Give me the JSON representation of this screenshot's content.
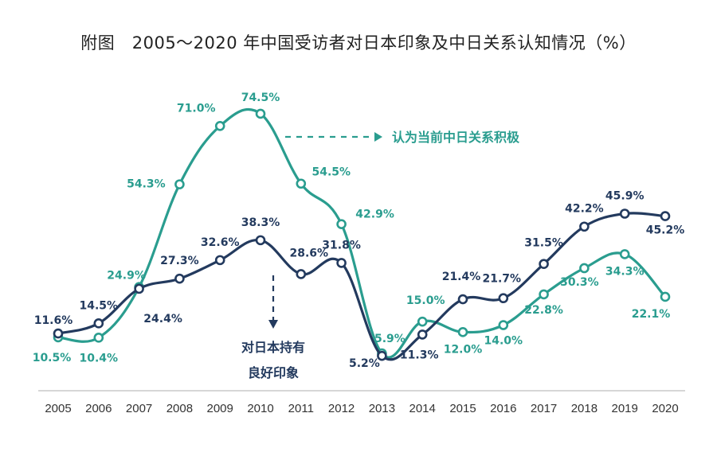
{
  "title": "附图　2005～2020 年中国受访者对日本印象及中日关系认知情况（%）",
  "colors": {
    "teal": "#2a9d8f",
    "navy": "#233a5e",
    "axis": "#c8c8c8"
  },
  "chart_data": {
    "type": "line",
    "categories": [
      "2005",
      "2006",
      "2007",
      "2008",
      "2009",
      "2010",
      "2011",
      "2012",
      "2013",
      "2014",
      "2015",
      "2016",
      "2017",
      "2018",
      "2019",
      "2020"
    ],
    "ylim": [
      0,
      80
    ],
    "series": [
      {
        "name": "认为当前中日关系积极",
        "color": "#2a9d8f",
        "values": [
          10.5,
          10.4,
          24.9,
          54.3,
          71.0,
          74.5,
          54.5,
          42.9,
          5.9,
          15.0,
          12.0,
          14.0,
          22.8,
          30.3,
          34.3,
          22.1
        ],
        "labels": [
          "10.5%",
          "10.4%",
          "24.9%",
          "54.3%",
          "71.0%",
          "74.5%",
          "54.5%",
          "42.9%",
          "5.9%",
          "15.0%",
          "12.0%",
          "14.0%",
          "22.8%",
          "30.3%",
          "34.3%",
          "22.1%"
        ]
      },
      {
        "name": "对日本持有良好印象",
        "color": "#233a5e",
        "values": [
          11.6,
          14.5,
          24.4,
          27.3,
          32.6,
          38.3,
          28.6,
          31.8,
          5.2,
          11.3,
          21.4,
          21.7,
          31.5,
          42.2,
          45.9,
          45.2
        ],
        "labels": [
          "11.6%",
          "14.5%",
          "24.4%",
          "27.3%",
          "32.6%",
          "38.3%",
          "28.6%",
          "31.8%",
          "5.2%",
          "11.3%",
          "21.4%",
          "21.7%",
          "31.5%",
          "42.2%",
          "45.9%",
          "45.2%"
        ]
      }
    ],
    "annotations": {
      "teal": "认为当前中日关系积极",
      "navy_line1": "对日本持有",
      "navy_line2": "良好印象"
    }
  }
}
